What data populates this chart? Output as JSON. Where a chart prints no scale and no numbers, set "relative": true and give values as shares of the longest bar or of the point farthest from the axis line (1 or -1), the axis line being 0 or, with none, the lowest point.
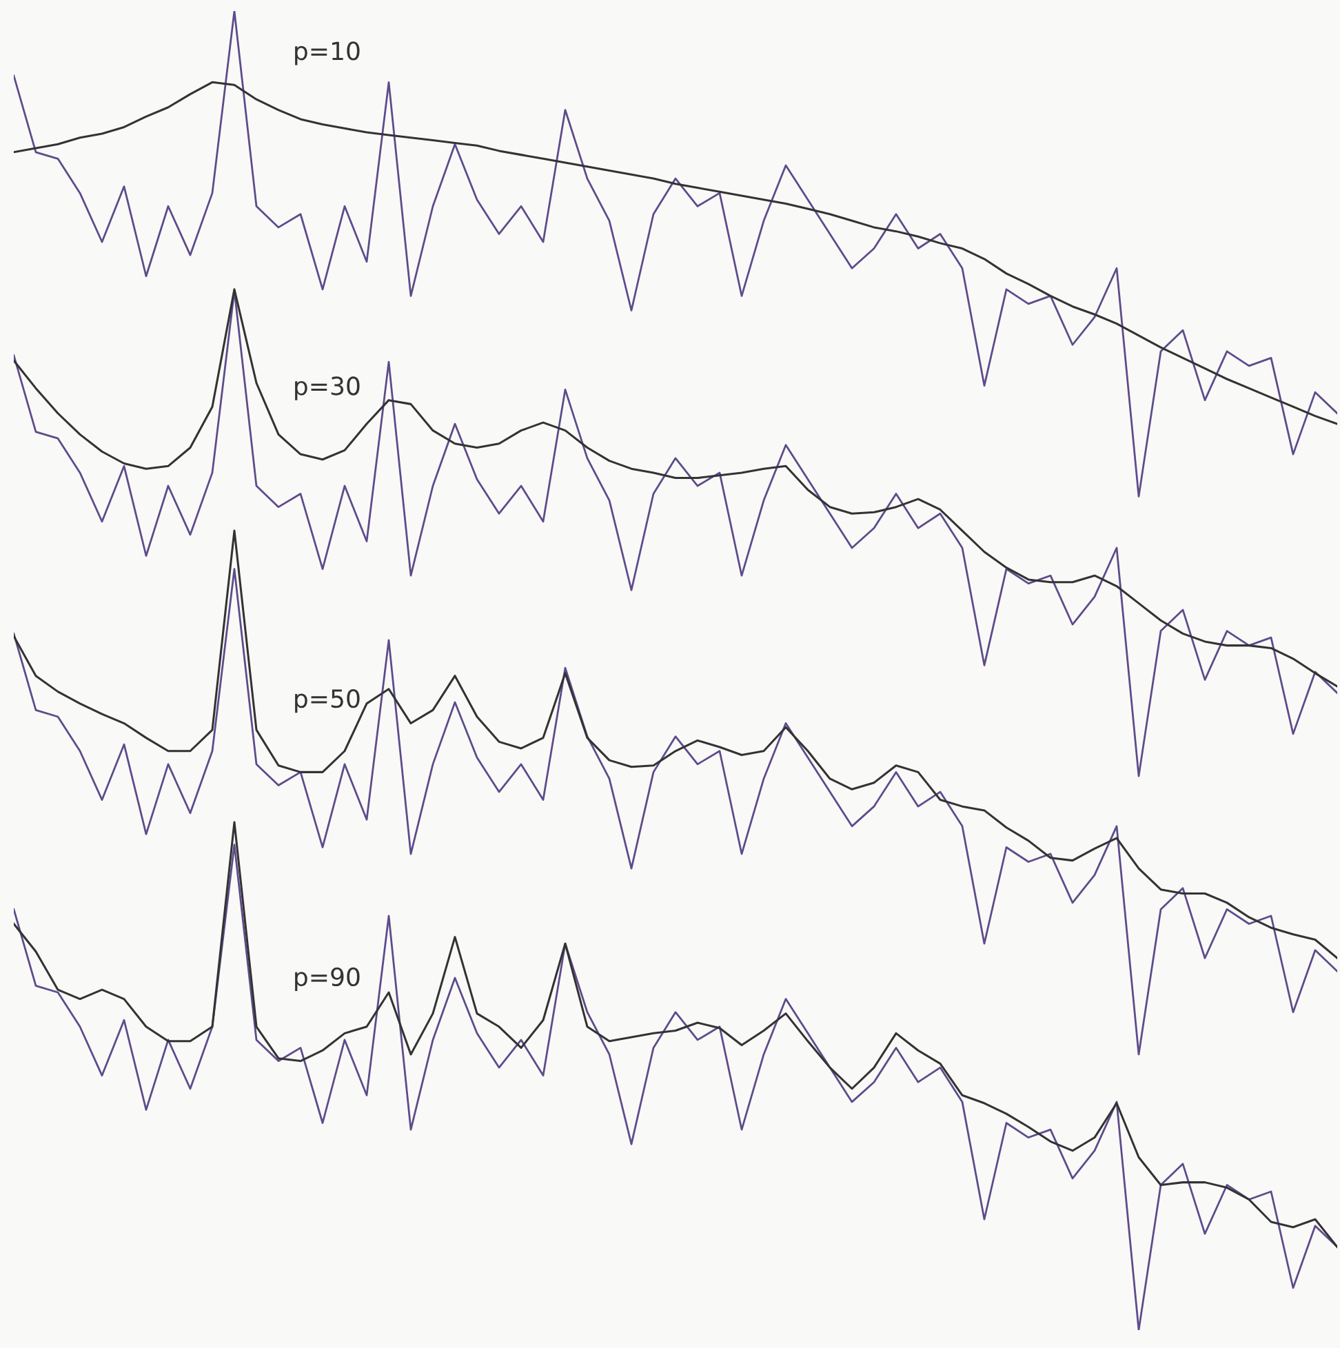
{
  "chart_data": {
    "type": "line",
    "relative": true,
    "marker": "none",
    "line_style": "solid",
    "categories": [
      null,
      null,
      null,
      null,
      null,
      null,
      null,
      null,
      null,
      null,
      null,
      null,
      null,
      null,
      null,
      null,
      null,
      null,
      null,
      null,
      null,
      null,
      null,
      null,
      null,
      null,
      null,
      null,
      null,
      null,
      null,
      null,
      null,
      null,
      null,
      null,
      null,
      null,
      null,
      null,
      null,
      null,
      null,
      null,
      null,
      null,
      null,
      null,
      null,
      null,
      null,
      null,
      null,
      null,
      null,
      null,
      null,
      null,
      null,
      null,
      null
    ],
    "annotations": [
      "p=10",
      "p=30",
      "p=50",
      "p=90"
    ],
    "series": [
      {
        "color": "#5e4b8b",
        "values": [
          0.951,
          0.893,
          0.888,
          0.862,
          0.825,
          0.867,
          0.799,
          0.852,
          0.815,
          0.862,
          1.0,
          0.852,
          0.836,
          0.846,
          0.789,
          0.852,
          0.81,
          0.946,
          0.784,
          0.852,
          0.899,
          0.857,
          0.831,
          0.852,
          0.825,
          0.925,
          0.873,
          0.841,
          0.773,
          0.846,
          0.873,
          0.852,
          0.862,
          0.784,
          0.841,
          0.883,
          0.857,
          0.831,
          0.805,
          0.82,
          0.846,
          0.82,
          0.831,
          0.805,
          0.716,
          0.789,
          0.778,
          0.784,
          0.747,
          0.768,
          0.805,
          0.632,
          0.742,
          0.758,
          0.705,
          0.742,
          0.731,
          0.737,
          0.664,
          0.711,
          0.695
        ]
      },
      {
        "color": "#333333",
        "values": [
          0.893,
          0.896,
          0.899,
          0.904,
          0.907,
          0.912,
          0.92,
          0.927,
          0.937,
          0.946,
          0.944,
          0.933,
          0.925,
          0.918,
          0.914,
          0.911,
          0.908,
          0.906,
          0.904,
          0.902,
          0.9,
          0.898,
          0.894,
          0.891,
          0.888,
          0.885,
          0.882,
          0.879,
          0.876,
          0.873,
          0.869,
          0.866,
          0.863,
          0.86,
          0.857,
          0.854,
          0.85,
          0.846,
          0.841,
          0.836,
          0.833,
          0.829,
          0.824,
          0.82,
          0.812,
          0.801,
          0.793,
          0.784,
          0.776,
          0.77,
          0.763,
          0.754,
          0.745,
          0.737,
          0.729,
          0.721,
          0.714,
          0.707,
          0.7,
          0.693,
          0.687
        ]
      },
      {
        "color": "#5e4b8b",
        "values": [
          0.739,
          0.681,
          0.676,
          0.65,
          0.613,
          0.655,
          0.587,
          0.64,
          0.603,
          0.65,
          0.788,
          0.64,
          0.624,
          0.634,
          0.577,
          0.64,
          0.598,
          0.734,
          0.572,
          0.64,
          0.687,
          0.645,
          0.619,
          0.64,
          0.613,
          0.713,
          0.661,
          0.629,
          0.561,
          0.634,
          0.661,
          0.64,
          0.65,
          0.572,
          0.629,
          0.671,
          0.645,
          0.619,
          0.593,
          0.608,
          0.634,
          0.608,
          0.619,
          0.593,
          0.504,
          0.577,
          0.566,
          0.572,
          0.535,
          0.556,
          0.593,
          0.42,
          0.53,
          0.546,
          0.493,
          0.53,
          0.519,
          0.525,
          0.452,
          0.499,
          0.483
        ]
      },
      {
        "color": "#333333",
        "values": [
          0.735,
          0.714,
          0.695,
          0.679,
          0.666,
          0.657,
          0.653,
          0.655,
          0.669,
          0.7,
          0.789,
          0.718,
          0.679,
          0.664,
          0.66,
          0.667,
          0.687,
          0.705,
          0.702,
          0.682,
          0.672,
          0.669,
          0.672,
          0.682,
          0.688,
          0.682,
          0.669,
          0.659,
          0.653,
          0.65,
          0.646,
          0.646,
          0.648,
          0.65,
          0.653,
          0.655,
          0.637,
          0.624,
          0.619,
          0.62,
          0.624,
          0.63,
          0.622,
          0.606,
          0.59,
          0.578,
          0.569,
          0.567,
          0.567,
          0.572,
          0.564,
          0.551,
          0.538,
          0.528,
          0.522,
          0.519,
          0.519,
          0.517,
          0.509,
          0.498,
          0.488
        ]
      },
      {
        "color": "#5e4b8b",
        "values": [
          0.528,
          0.47,
          0.465,
          0.439,
          0.402,
          0.444,
          0.376,
          0.429,
          0.392,
          0.439,
          0.577,
          0.429,
          0.413,
          0.423,
          0.366,
          0.429,
          0.387,
          0.523,
          0.361,
          0.429,
          0.476,
          0.434,
          0.408,
          0.429,
          0.402,
          0.502,
          0.45,
          0.418,
          0.35,
          0.423,
          0.45,
          0.429,
          0.439,
          0.361,
          0.418,
          0.46,
          0.434,
          0.408,
          0.382,
          0.397,
          0.423,
          0.397,
          0.408,
          0.382,
          0.293,
          0.366,
          0.355,
          0.361,
          0.324,
          0.345,
          0.382,
          0.209,
          0.319,
          0.335,
          0.282,
          0.319,
          0.308,
          0.314,
          0.241,
          0.288,
          0.272
        ]
      },
      {
        "color": "#333333",
        "values": [
          0.526,
          0.496,
          0.484,
          0.475,
          0.467,
          0.46,
          0.449,
          0.439,
          0.439,
          0.455,
          0.606,
          0.455,
          0.428,
          0.423,
          0.423,
          0.439,
          0.475,
          0.486,
          0.46,
          0.47,
          0.496,
          0.465,
          0.446,
          0.441,
          0.449,
          0.498,
          0.449,
          0.432,
          0.427,
          0.428,
          0.439,
          0.447,
          0.442,
          0.436,
          0.439,
          0.457,
          0.439,
          0.418,
          0.41,
          0.415,
          0.428,
          0.423,
          0.402,
          0.397,
          0.394,
          0.381,
          0.371,
          0.358,
          0.356,
          0.365,
          0.373,
          0.35,
          0.334,
          0.331,
          0.331,
          0.324,
          0.313,
          0.305,
          0.3,
          0.296,
          0.282
        ]
      },
      {
        "color": "#5e4b8b",
        "values": [
          0.319,
          0.261,
          0.256,
          0.23,
          0.193,
          0.235,
          0.167,
          0.22,
          0.183,
          0.23,
          0.368,
          0.22,
          0.204,
          0.214,
          0.157,
          0.22,
          0.178,
          0.314,
          0.152,
          0.22,
          0.267,
          0.225,
          0.199,
          0.22,
          0.193,
          0.293,
          0.241,
          0.209,
          0.141,
          0.214,
          0.241,
          0.22,
          0.23,
          0.152,
          0.209,
          0.251,
          0.225,
          0.199,
          0.173,
          0.188,
          0.214,
          0.188,
          0.199,
          0.173,
          0.084,
          0.157,
          0.146,
          0.152,
          0.115,
          0.136,
          0.173,
          0.0,
          0.11,
          0.126,
          0.073,
          0.11,
          0.099,
          0.105,
          0.032,
          0.079,
          0.063
        ]
      },
      {
        "color": "#333333",
        "values": [
          0.308,
          0.287,
          0.258,
          0.251,
          0.258,
          0.251,
          0.23,
          0.219,
          0.219,
          0.23,
          0.385,
          0.23,
          0.206,
          0.204,
          0.212,
          0.225,
          0.23,
          0.256,
          0.209,
          0.24,
          0.298,
          0.24,
          0.23,
          0.214,
          0.235,
          0.293,
          0.23,
          0.219,
          0.222,
          0.225,
          0.227,
          0.233,
          0.229,
          0.216,
          0.227,
          0.24,
          0.219,
          0.199,
          0.183,
          0.199,
          0.225,
          0.212,
          0.202,
          0.178,
          0.172,
          0.164,
          0.154,
          0.143,
          0.136,
          0.146,
          0.172,
          0.131,
          0.11,
          0.112,
          0.112,
          0.108,
          0.099,
          0.082,
          0.078,
          0.084,
          0.063
        ]
      }
    ]
  }
}
